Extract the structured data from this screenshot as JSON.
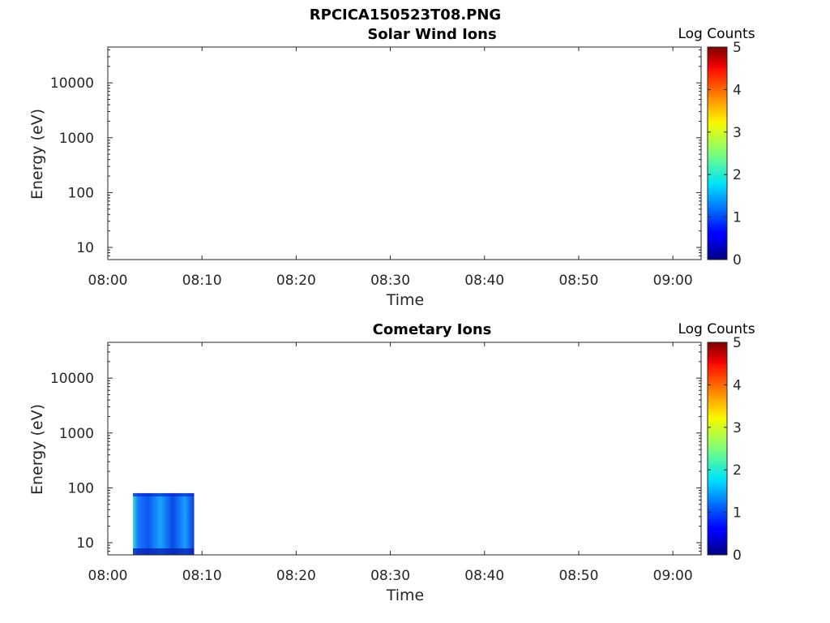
{
  "figure": {
    "suptitle": "RPCICA150523T08.PNG"
  },
  "chart_data": [
    {
      "type": "heatmap",
      "title": "Solar Wind Ions",
      "xlabel": "Time",
      "ylabel": "Energy (eV)",
      "x_ticks": [
        "08:00",
        "08:10",
        "08:20",
        "08:30",
        "08:40",
        "08:50",
        "09:00"
      ],
      "x_range": [
        "08:00",
        "09:03"
      ],
      "y_scale": "log",
      "y_ticks": [
        "10",
        "100",
        "1000",
        "10000"
      ],
      "y_range": [
        6,
        45000
      ],
      "colorbar": {
        "label": "Log Counts",
        "ticks": [
          "0",
          "1",
          "2",
          "3",
          "4",
          "5"
        ],
        "range": [
          0,
          5
        ],
        "colormap": "jet"
      },
      "cells": []
    },
    {
      "type": "heatmap",
      "title": "Cometary Ions",
      "xlabel": "Time",
      "ylabel": "Energy (eV)",
      "x_ticks": [
        "08:00",
        "08:10",
        "08:20",
        "08:30",
        "08:40",
        "08:50",
        "09:00"
      ],
      "x_range": [
        "08:00",
        "09:03"
      ],
      "y_scale": "log",
      "y_ticks": [
        "10",
        "100",
        "1000",
        "10000"
      ],
      "y_range": [
        6,
        45000
      ],
      "colorbar": {
        "label": "Log Counts",
        "ticks": [
          "0",
          "1",
          "2",
          "3",
          "4",
          "5"
        ],
        "range": [
          0,
          5
        ],
        "colormap": "jet"
      },
      "cells": [
        {
          "t_start": "08:02:40",
          "t_end": "08:09:10",
          "e_low": 6,
          "e_high": 80,
          "log_counts_min": 0.3,
          "log_counts_max": 2.2
        }
      ]
    }
  ]
}
